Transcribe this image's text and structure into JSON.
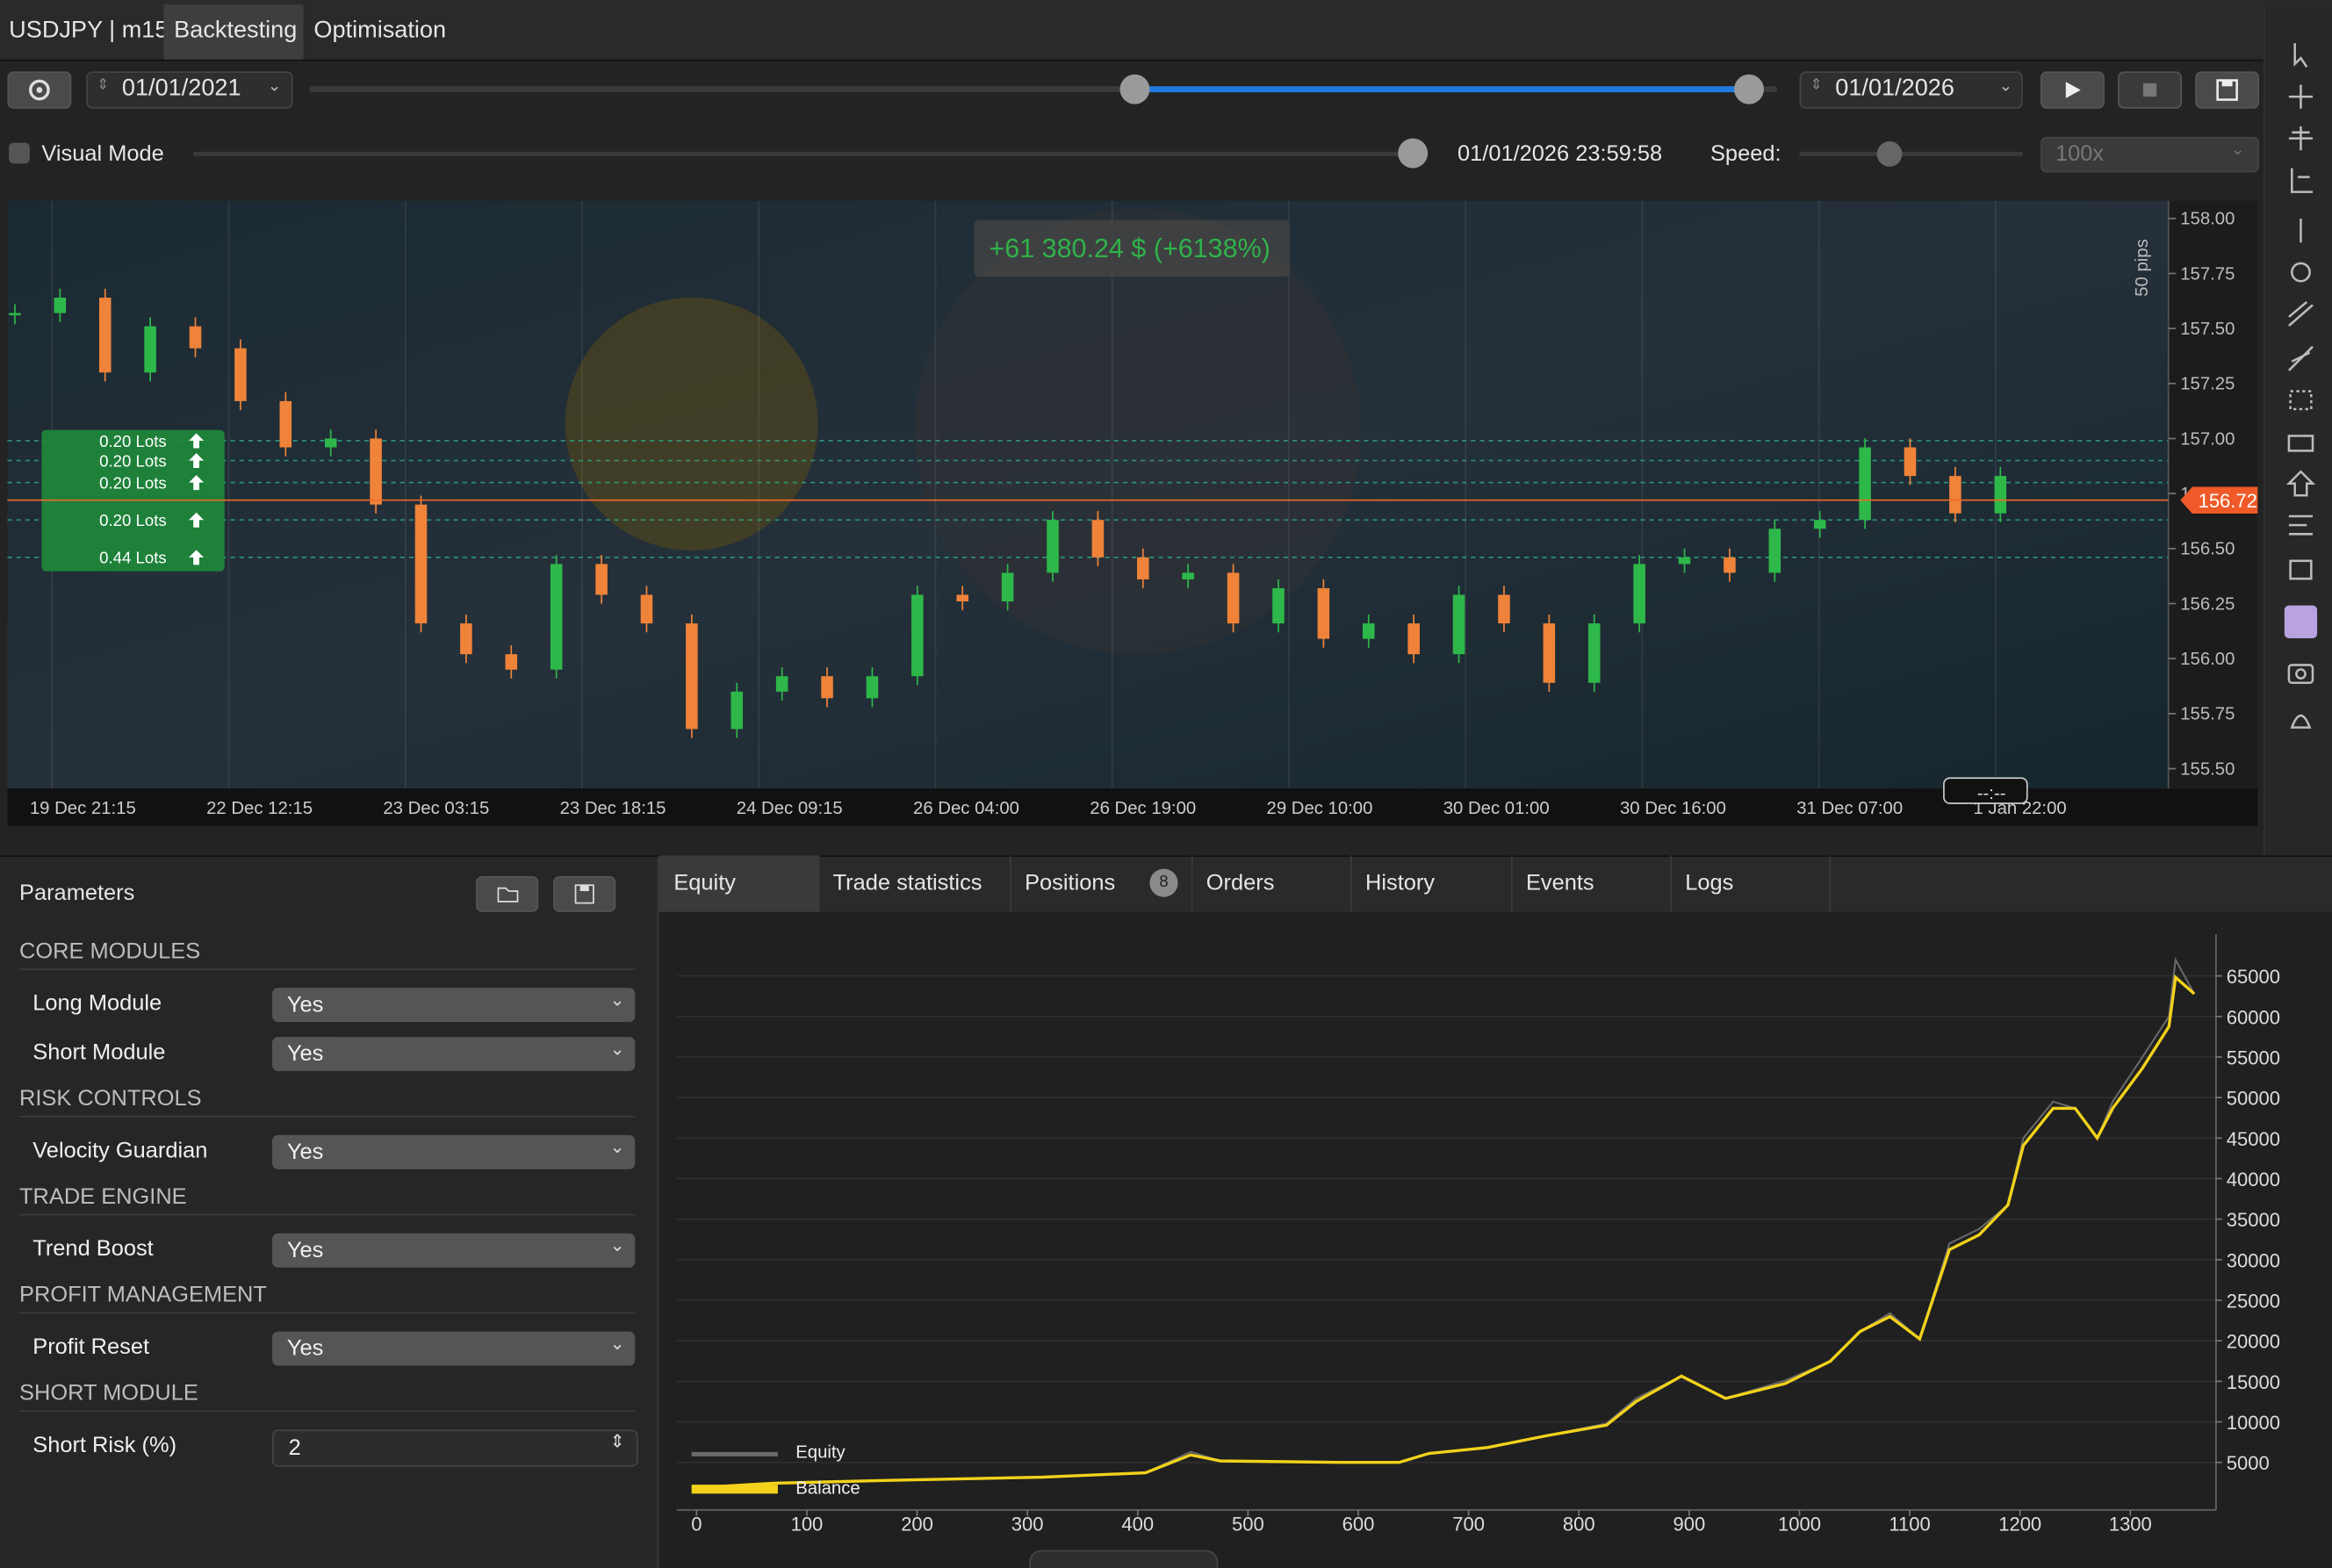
{
  "header": {
    "symbol": "USDJPY | m15",
    "tabs": [
      "Backtesting",
      "Optimisation"
    ]
  },
  "toolbar": {
    "start_date": "01/01/2021",
    "end_date": "01/01/2026",
    "visual_mode": "Visual Mode",
    "current_time": "01/01/2026 23:59:58",
    "speed_label": "Speed:",
    "speed": "100x"
  },
  "price_chart": {
    "type": "candlestick",
    "profit_label": "+61 380.24 $ (+6138%)",
    "pips_label": "50 pips",
    "current_price": {
      "value": 156.72,
      "label": "156.72"
    },
    "ylim": [
      155.41,
      158.08
    ],
    "yticks": [
      {
        "value": 158,
        "label": "158.00"
      },
      {
        "value": 157.75,
        "label": "157.75"
      },
      {
        "value": 157.5,
        "label": "157.50"
      },
      {
        "value": 157.25,
        "label": "157.25"
      },
      {
        "value": 157,
        "label": "157.00"
      },
      {
        "value": 156.75,
        "label": "156.75"
      },
      {
        "value": 156.5,
        "label": "156.50"
      },
      {
        "value": 156.25,
        "label": "156.25"
      },
      {
        "value": 156,
        "label": "156.00"
      },
      {
        "value": 155.75,
        "label": "155.75"
      },
      {
        "value": 155.5,
        "label": "155.50"
      }
    ],
    "categories": [
      "19 Dec 21:15",
      "22 Dec 12:15",
      "23 Dec 03:15",
      "23 Dec 18:15",
      "24 Dec 09:15",
      "26 Dec 04:00",
      "26 Dec 19:00",
      "29 Dec 10:00",
      "30 Dec 01:00",
      "30 Dec 16:00",
      "31 Dec 07:00",
      "1 Jan 22:00"
    ],
    "cursor_label": "--:--",
    "colors": {
      "up": "#2eb84a",
      "down": "#f0833a"
    },
    "closes": [
      157.57,
      157.64,
      157.3,
      157.51,
      157.41,
      157.17,
      156.96,
      157.0,
      156.7,
      156.16,
      156.02,
      155.95,
      156.43,
      156.29,
      156.16,
      155.68,
      155.85,
      155.92,
      155.82,
      155.92,
      156.29,
      156.26,
      156.39,
      156.63,
      156.46,
      156.36,
      156.39,
      156.16,
      156.32,
      156.09,
      156.16,
      156.02,
      156.29,
      156.16,
      155.89,
      156.16,
      156.43,
      156.46,
      156.39,
      156.59,
      156.63,
      156.96,
      156.83,
      156.66,
      156.83
    ],
    "orders": [
      {
        "lots": "0.20 Lots",
        "price": 156.99
      },
      {
        "lots": "0.20 Lots",
        "price": 156.9
      },
      {
        "lots": "0.20 Lots",
        "price": 156.8
      },
      {
        "lots": "0.20 Lots",
        "price": 156.63
      },
      {
        "lots": "0.44 Lots",
        "price": 156.46
      }
    ]
  },
  "parameters": {
    "title": "Parameters",
    "sections": [
      {
        "name": "CORE MODULES",
        "rows": [
          {
            "label": "Long Module",
            "value": "Yes"
          },
          {
            "label": "Short Module",
            "value": "Yes"
          }
        ]
      },
      {
        "name": "RISK CONTROLS",
        "rows": [
          {
            "label": "Velocity Guardian",
            "value": "Yes"
          }
        ]
      },
      {
        "name": "TRADE ENGINE",
        "rows": [
          {
            "label": "Trend Boost",
            "value": "Yes"
          }
        ]
      },
      {
        "name": "PROFIT MANAGEMENT",
        "rows": [
          {
            "label": "Profit Reset",
            "value": "Yes"
          }
        ]
      },
      {
        "name": "SHORT MODULE",
        "rows": [
          {
            "label": "Short Risk (%)",
            "value": 2
          }
        ]
      }
    ]
  },
  "result_tabs": [
    "Equity",
    "Trade statistics",
    "Positions",
    "Orders",
    "History",
    "Events",
    "Logs"
  ],
  "positions_badge": 8,
  "chart_data": {
    "type": "line",
    "xlim": [
      -18,
      1375
    ],
    "ylim": [
      -870,
      70140
    ],
    "xticks": [
      0,
      100,
      200,
      300,
      400,
      500,
      600,
      700,
      800,
      900,
      1000,
      1100,
      1200,
      1300
    ],
    "yticks": [
      5000,
      10000,
      15000,
      20000,
      25000,
      30000,
      35000,
      40000,
      45000,
      50000,
      55000,
      60000,
      65000
    ],
    "x": [
      0,
      70,
      178,
      313,
      407,
      448,
      475,
      583,
      637,
      664,
      717,
      771,
      825,
      852,
      893,
      933,
      987,
      1028,
      1055,
      1082,
      1109,
      1136,
      1163,
      1189,
      1203,
      1230,
      1250,
      1270,
      1284,
      1311,
      1335,
      1341,
      1358
    ],
    "series": [
      {
        "name": "Equity",
        "color": "#6a6a6a",
        "values": [
          1880,
          2430,
          2800,
          3170,
          3720,
          6300,
          5180,
          5000,
          5000,
          6100,
          6830,
          8300,
          9800,
          12900,
          15640,
          12890,
          15100,
          17480,
          21150,
          23400,
          20230,
          32000,
          33800,
          36740,
          45000,
          49500,
          48670,
          45000,
          49500,
          55000,
          60000,
          67000,
          62800
        ]
      },
      {
        "name": "Balance",
        "color": "#f2d21b",
        "values": [
          1880,
          2430,
          2800,
          3170,
          3720,
          5920,
          5180,
          5000,
          5000,
          6100,
          6830,
          8300,
          9590,
          12520,
          15640,
          12890,
          14720,
          17480,
          21150,
          22980,
          20230,
          31240,
          33070,
          36740,
          44080,
          48670,
          48670,
          45000,
          48670,
          53620,
          58760,
          64820,
          62800
        ]
      }
    ]
  }
}
